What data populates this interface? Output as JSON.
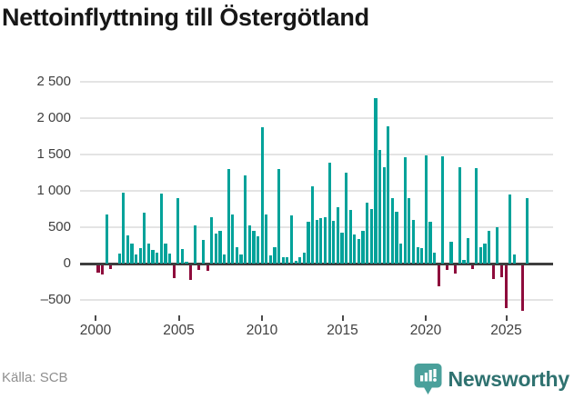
{
  "title": "Nettoinflyttning till Östergötland",
  "source": "Källa: SCB",
  "branding": {
    "name": "Newsworthy",
    "icon": "newsworthy-bubble-chart-icon"
  },
  "colors": {
    "positive_bar": "#00a29a",
    "negative_bar": "#8e0c3c",
    "gridline": "#e4e4e4",
    "zero_line": "#3e3e3e",
    "axis_text": "#3f3f3f",
    "title_text": "#171717",
    "source_text": "#8f8f8f",
    "brand_text": "#2f7270",
    "brand_icon": "#4aa09b"
  },
  "chart_data": {
    "type": "bar",
    "title": "Nettoinflyttning till Östergötland",
    "frequency": "quarterly",
    "x_start": "2000-Q1",
    "x_end": "2025-Q3",
    "xlabel": "",
    "ylabel": "",
    "ylim": [
      -700,
      2550
    ],
    "grid": true,
    "legend": false,
    "y_tick_values": [
      2500,
      2000,
      1500,
      1000,
      500,
      0,
      -500
    ],
    "y_tick_labels": [
      "2 500",
      "2 000",
      "1 500",
      "1 000",
      "500",
      "0",
      "–500"
    ],
    "x_tick_labels": [
      "2000",
      "2005",
      "2010",
      "2015",
      "2020",
      "2025"
    ],
    "values": [
      -100,
      -130,
      680,
      -60,
      0,
      140,
      980,
      385,
      275,
      120,
      210,
      700,
      270,
      185,
      155,
      960,
      270,
      135,
      -175,
      895,
      195,
      25,
      -200,
      530,
      -70,
      330,
      -85,
      640,
      410,
      450,
      125,
      1300,
      680,
      230,
      125,
      1210,
      530,
      450,
      375,
      1870,
      675,
      110,
      220,
      1300,
      92,
      85,
      660,
      42,
      90,
      145,
      580,
      1060,
      600,
      620,
      635,
      1390,
      585,
      780,
      420,
      1250,
      735,
      395,
      335,
      450,
      835,
      750,
      2280,
      1560,
      1325,
      1890,
      900,
      715,
      270,
      1460,
      895,
      605,
      230,
      215,
      1490,
      575,
      150,
      -290,
      1470,
      -65,
      305,
      -115,
      1330,
      55,
      355,
      -55,
      1310,
      230,
      270,
      450,
      -190,
      500,
      -165,
      -596,
      945,
      125,
      0,
      -625,
      905
    ]
  }
}
